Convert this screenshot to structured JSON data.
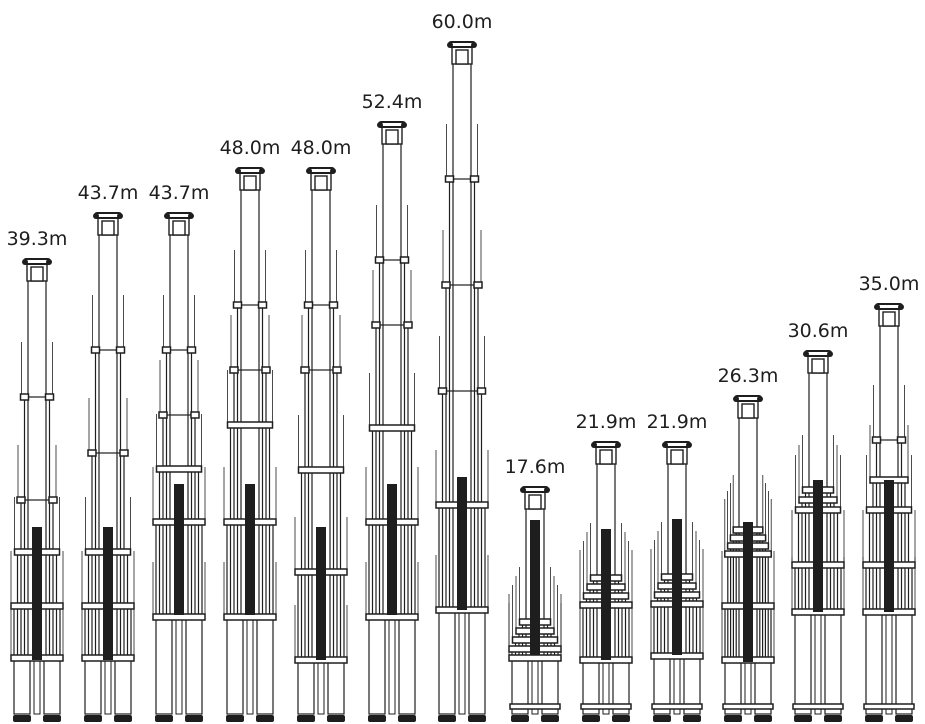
{
  "colors": {
    "ink": "#1e1e1e",
    "background": "#ffffff"
  },
  "diagram": {
    "booms": [
      {
        "label": "39.3m"
      },
      {
        "label": "43.7m"
      },
      {
        "label": "43.7m"
      },
      {
        "label": "48.0m"
      },
      {
        "label": "48.0m"
      },
      {
        "label": "52.4m"
      },
      {
        "label": "60.0m"
      },
      {
        "label": "17.6m"
      },
      {
        "label": "21.9m"
      },
      {
        "label": "21.9m"
      },
      {
        "label": "26.3m"
      },
      {
        "label": "30.6m"
      },
      {
        "label": "35.0m"
      }
    ]
  }
}
